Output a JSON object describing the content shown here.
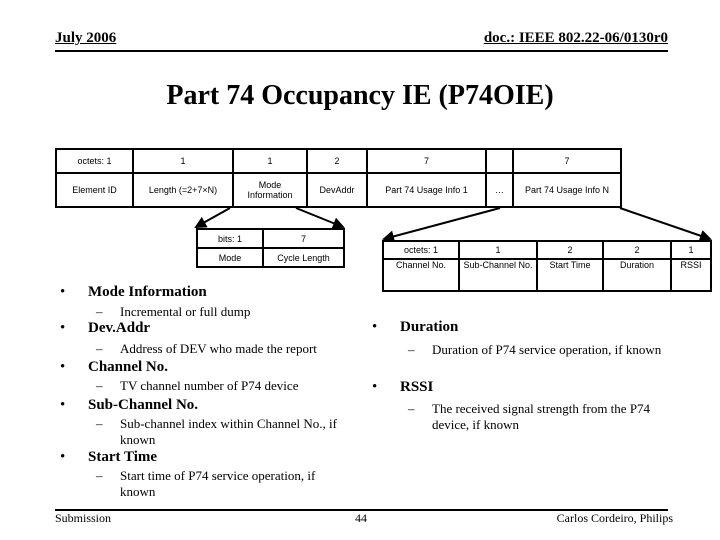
{
  "header": {
    "date": "July 2006",
    "doc": "doc.: IEEE 802.22-06/0130r0"
  },
  "title": "Part 74 Occupancy IE (P74OIE)",
  "main_table": {
    "sizes": [
      "octets: 1",
      "1",
      "1",
      "2",
      "7",
      "",
      "7"
    ],
    "fields": [
      "Element ID",
      "Length (=2+7×N)",
      "Mode Information",
      "DevAddr",
      "Part 74 Usage Info 1",
      "…",
      "Part 74 Usage Info N"
    ]
  },
  "mode_table": {
    "sizes": [
      "bits: 1",
      "7"
    ],
    "fields": [
      "Mode",
      "Cycle Length"
    ]
  },
  "usage_table": {
    "sizes": [
      "octets: 1",
      "1",
      "2",
      "2",
      "1"
    ],
    "fields": [
      "Channel No.",
      "Sub-Channel No.",
      "Start Time",
      "Duration",
      "RSSI"
    ]
  },
  "left_bullets": [
    {
      "title": "Mode Information",
      "sub": "Incremental or full dump"
    },
    {
      "title": "Dev.Addr",
      "sub": "Address of DEV who made the report"
    },
    {
      "title": "Channel No.",
      "sub": "TV channel number of P74 device"
    },
    {
      "title": "Sub-Channel No.",
      "sub": "Sub-channel index within Channel No., if known"
    },
    {
      "title": "Start Time",
      "sub": "Start time of P74 service operation, if known"
    }
  ],
  "right_bullets": [
    {
      "title": "Duration",
      "sub": "Duration of P74 service operation, if known"
    },
    {
      "title": "RSSI",
      "sub": "The received signal strength from the P74 device, if known"
    }
  ],
  "footer": {
    "left": "Submission",
    "page": "44",
    "right": "Carlos Cordeiro, Philips"
  }
}
